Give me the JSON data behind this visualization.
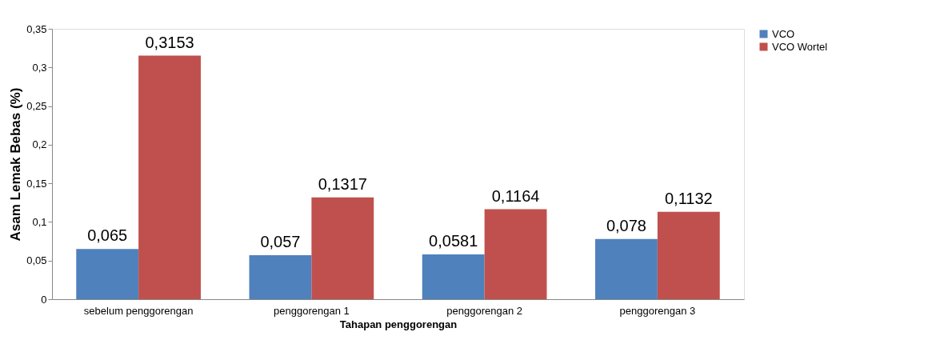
{
  "chart_data": {
    "type": "bar",
    "xlabel": "Tahapan penggorengan",
    "ylabel": "Asam Lemak Bebas (%)",
    "categories": [
      "sebelum penggorengan",
      "penggorengan 1",
      "penggorengan 2",
      "penggorengan 3"
    ],
    "series": [
      {
        "name": "VCO",
        "color": "#4f81bd",
        "values": [
          0.065,
          0.057,
          0.0581,
          0.078
        ],
        "value_labels": [
          "0,065",
          "0,057",
          "0,0581",
          "0,078"
        ]
      },
      {
        "name": "VCO Wortel",
        "color": "#c0504d",
        "values": [
          0.3153,
          0.1317,
          0.1164,
          0.1132
        ],
        "value_labels": [
          "0,3153",
          "0,1317",
          "0,1164",
          "0,1132"
        ]
      }
    ],
    "ylim": [
      0,
      0.35
    ],
    "yticks": [
      {
        "value": 0,
        "label": "0"
      },
      {
        "value": 0.05,
        "label": "0,05"
      },
      {
        "value": 0.1,
        "label": "0,1"
      },
      {
        "value": 0.15,
        "label": "0,15"
      },
      {
        "value": 0.2,
        "label": "0,2"
      },
      {
        "value": 0.25,
        "label": "0,25"
      },
      {
        "value": 0.3,
        "label": "0,3"
      },
      {
        "value": 0.35,
        "label": "0,35"
      }
    ],
    "grid": false,
    "legend": "right"
  }
}
